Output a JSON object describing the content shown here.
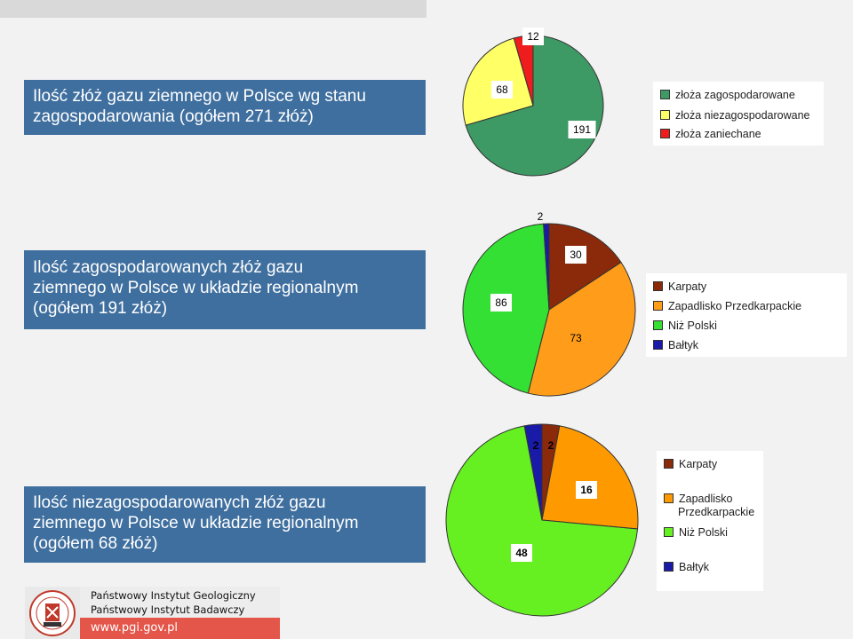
{
  "chart_data": [
    {
      "type": "pie",
      "title": [
        "Ilość złóż gazu ziemnego w Polsce wg stanu",
        "zagospodarowania (ogółem 271 złóż)"
      ],
      "slices": [
        {
          "name": "złoża zagospodarowane",
          "value": 191,
          "color": "#3d9a64"
        },
        {
          "name": "złoża niezagospodarowane",
          "value": 68,
          "color": "#ffff66"
        },
        {
          "name": "złoża zaniechane",
          "value": 12,
          "color": "#ee1c1c"
        }
      ],
      "legend": [
        "złoża zagospodarowane",
        "złoża niezagospodarowane",
        "złoża zaniechane"
      ],
      "legend_position": "right"
    },
    {
      "type": "pie",
      "title": [
        "Ilość zagospodarowanych złóż gazu",
        "ziemnego w Polsce w układzie regionalnym",
        "(ogółem 191 złóż)"
      ],
      "slices": [
        {
          "name": "Karpaty",
          "value": 30,
          "color": "#8b2a0a"
        },
        {
          "name": "Zapadlisko Przedkarpackie",
          "value": 73,
          "color": "#ff9d1a"
        },
        {
          "name": "Niż Polski",
          "value": 86,
          "color": "#33e033"
        },
        {
          "name": "Bałtyk",
          "value": 2,
          "color": "#1a1aa8"
        }
      ],
      "legend": [
        "Karpaty",
        "Zapadlisko Przedkarpackie",
        "Niż Polski",
        "Bałtyk"
      ],
      "legend_position": "right"
    },
    {
      "type": "pie",
      "title": [
        "Ilość niezagospodarowanych złóż gazu",
        "ziemnego w Polsce w układzie regionalnym",
        "(ogółem 68 złóż)"
      ],
      "slices": [
        {
          "name": "Karpaty",
          "value": 2,
          "color": "#8b2a0a"
        },
        {
          "name": "Zapadlisko Przedkarpackie",
          "value": 16,
          "color": "#ff9900"
        },
        {
          "name": "Niż Polski",
          "value": 48,
          "color": "#66f022"
        },
        {
          "name": "Bałtyk",
          "value": 2,
          "color": "#1a1aa8"
        }
      ],
      "legend": [
        "Karpaty",
        [
          "Zapadlisko",
          "Przedkarpackie"
        ],
        "Niż Polski",
        "Bałtyk"
      ],
      "legend_position": "right"
    }
  ],
  "footer": {
    "line1": "Państwowy Instytut Geologiczny",
    "line2": "Państwowy Instytut Badawczy",
    "url": "www.pgi.gov.pl",
    "accent_color": "#e4554a"
  }
}
